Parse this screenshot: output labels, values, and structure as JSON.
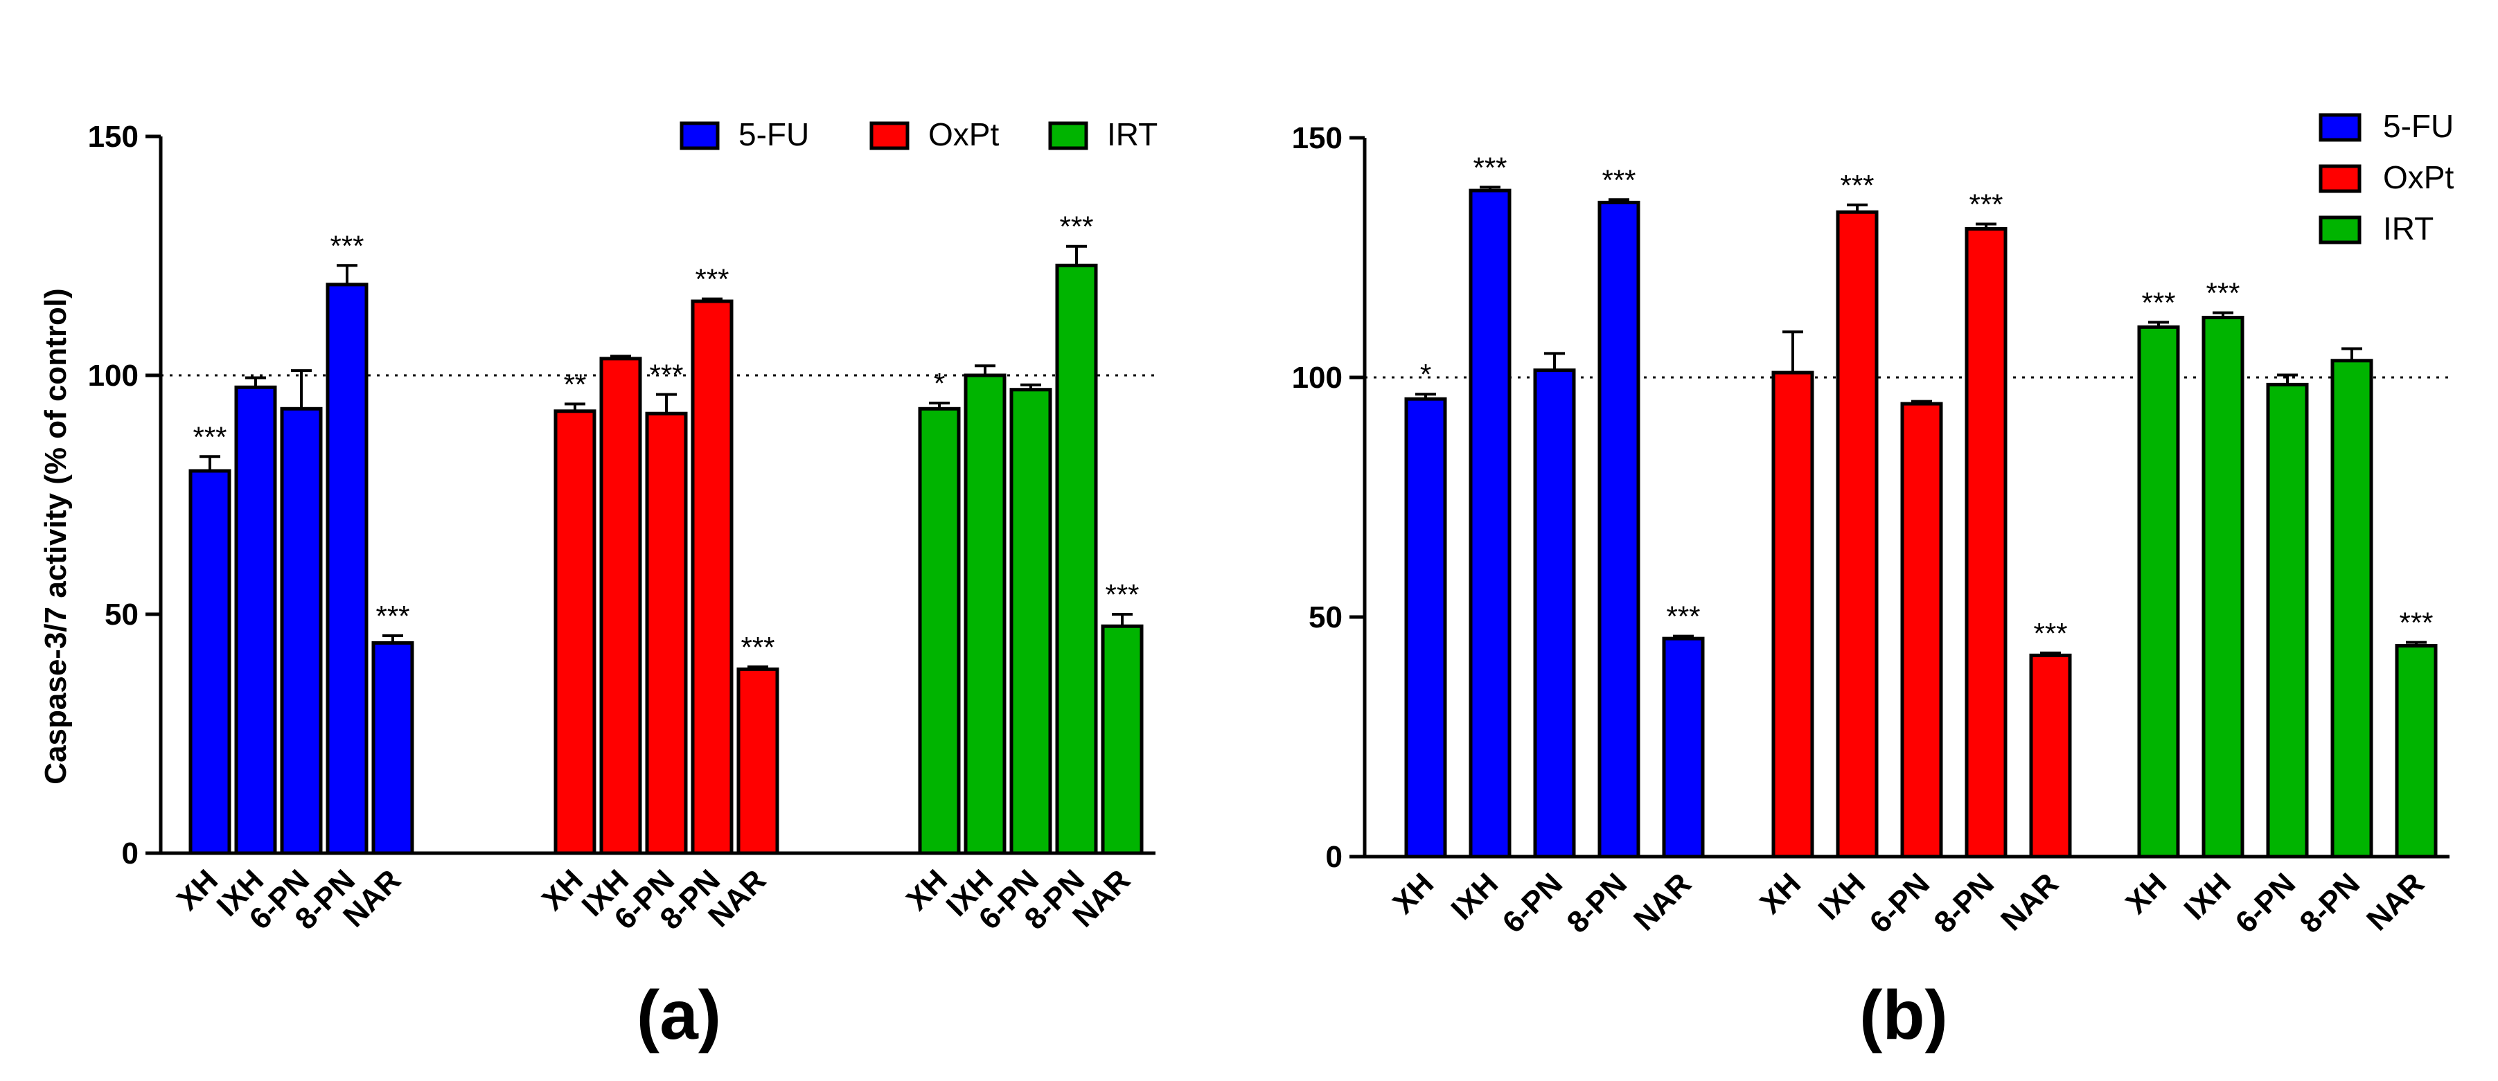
{
  "chart_data": [
    {
      "type": "bar",
      "panel_label": "(a)",
      "ylabel": "Caspase-3/7 activity (% of control)",
      "ylim": [
        0,
        150
      ],
      "yticks": [
        0,
        50,
        100,
        150
      ],
      "reference_line": 100,
      "legend": {
        "placement": "top",
        "entries": [
          {
            "name": "5-FU",
            "color": "#0000FF"
          },
          {
            "name": "OxPt",
            "color": "#FF0000"
          },
          {
            "name": "IRT",
            "color": "#00B400"
          }
        ]
      },
      "groups": [
        {
          "series": "5-FU",
          "color": "#0000FF",
          "categories": [
            "XH",
            "IXH",
            "6-PN",
            "8-PN",
            "NAR"
          ],
          "values": [
            80,
            97.5,
            93,
            119,
            44
          ],
          "errors": [
            3,
            2,
            8,
            4,
            1.5
          ],
          "annotations": [
            "***",
            "",
            "",
            "***",
            "***"
          ]
        },
        {
          "series": "OxPt",
          "color": "#FF0000",
          "categories": [
            "XH",
            "IXH",
            "6-PN",
            "8-PN",
            "NAR"
          ],
          "values": [
            92.5,
            103.5,
            92,
            115.5,
            38.5
          ],
          "errors": [
            1.5,
            0.5,
            4,
            0.5,
            0.5
          ],
          "annotations": [
            "**",
            "",
            "***",
            "***",
            "***"
          ]
        },
        {
          "series": "IRT",
          "color": "#00B400",
          "categories": [
            "XH",
            "IXH",
            "6-PN",
            "8-PN",
            "NAR"
          ],
          "values": [
            93,
            100,
            97,
            123,
            47.5
          ],
          "errors": [
            1.2,
            2,
            1,
            4,
            2.5
          ],
          "annotations": [
            "*",
            "",
            "",
            "***",
            "***"
          ]
        }
      ]
    },
    {
      "type": "bar",
      "panel_label": "(b)",
      "ylabel": "",
      "ylim": [
        0,
        150
      ],
      "yticks": [
        0,
        50,
        100,
        150
      ],
      "reference_line": 100,
      "legend": {
        "placement": "top-right",
        "entries": [
          {
            "name": "5-FU",
            "color": "#0000FF"
          },
          {
            "name": "OxPt",
            "color": "#FF0000"
          },
          {
            "name": "IRT",
            "color": "#00B400"
          }
        ]
      },
      "groups": [
        {
          "series": "5-FU",
          "color": "#0000FF",
          "categories": [
            "XH",
            "IXH",
            "6-PN",
            "8-PN",
            "NAR"
          ],
          "values": [
            95.5,
            139,
            101.5,
            136.5,
            45.5
          ],
          "errors": [
            1,
            0.7,
            3.5,
            0.6,
            0.5
          ],
          "annotations": [
            "*",
            "***",
            "",
            "***",
            "***"
          ]
        },
        {
          "series": "OxPt",
          "color": "#FF0000",
          "categories": [
            "XH",
            "IXH",
            "6-PN",
            "8-PN",
            "NAR"
          ],
          "values": [
            101,
            134.5,
            94.5,
            131,
            42
          ],
          "errors": [
            8.5,
            1.5,
            0.5,
            1,
            0.5
          ],
          "annotations": [
            "",
            "***",
            "",
            "***",
            "***"
          ]
        },
        {
          "series": "IRT",
          "color": "#00B400",
          "categories": [
            "XH",
            "IXH",
            "6-PN",
            "8-PN",
            "NAR"
          ],
          "values": [
            110.5,
            112.5,
            98.5,
            103.5,
            44
          ],
          "errors": [
            1,
            1,
            2,
            2.5,
            0.7
          ],
          "annotations": [
            "***",
            "***",
            "",
            "",
            "***"
          ]
        }
      ]
    }
  ]
}
